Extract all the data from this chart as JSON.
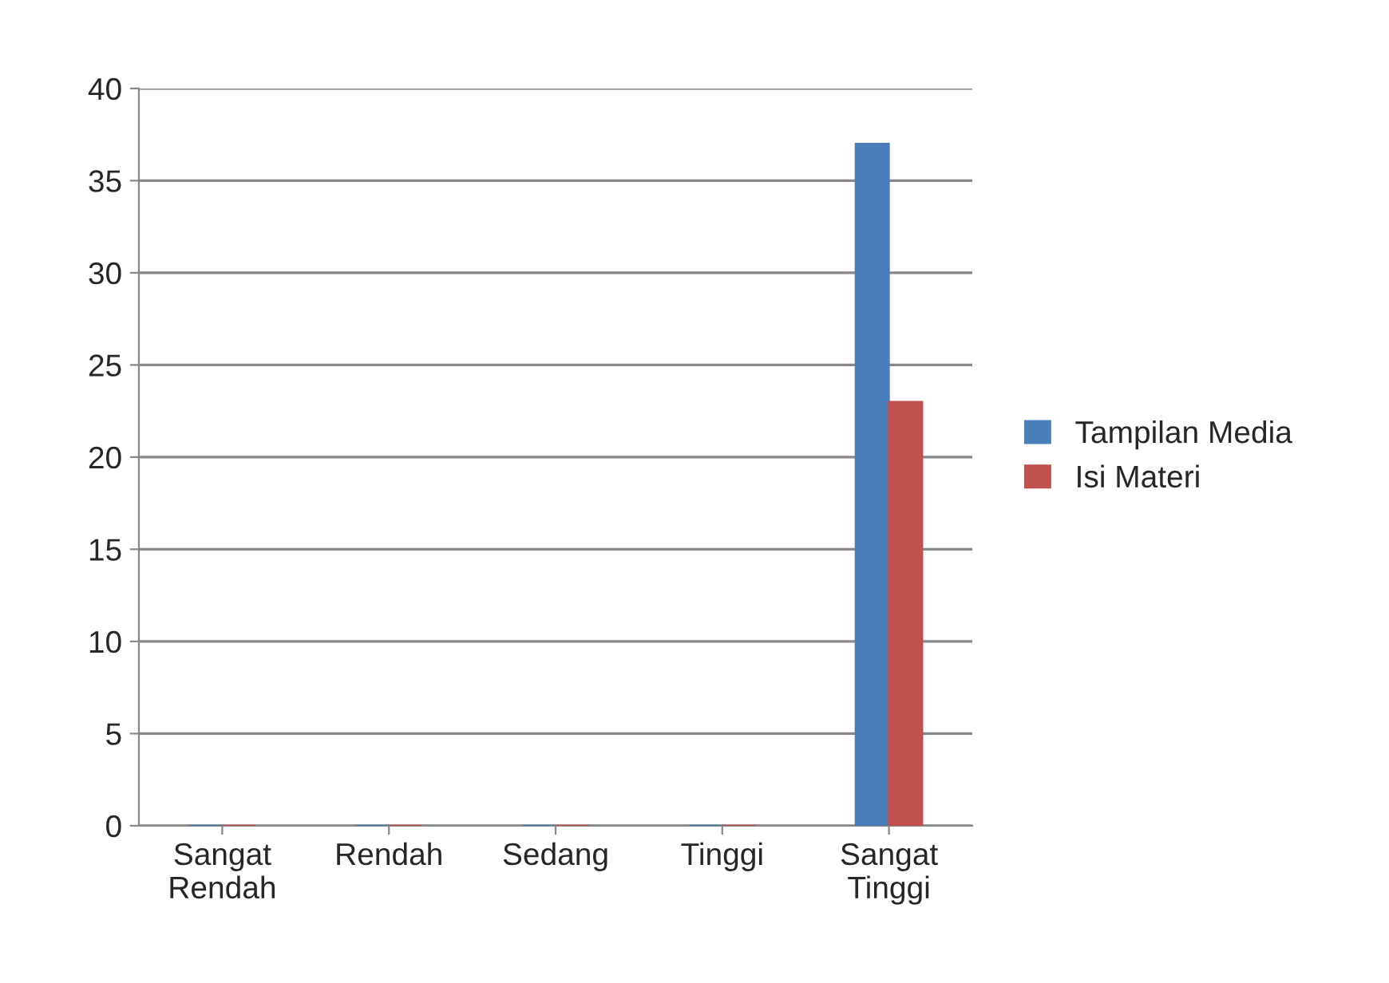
{
  "chart_data": {
    "type": "bar",
    "categories": [
      "Sangat\nRendah",
      "Rendah",
      "Sedang",
      "Tinggi",
      "Sangat\nTinggi"
    ],
    "series": [
      {
        "name": "Tampilan Media",
        "color": "#4a7ebb",
        "values": [
          0,
          0,
          0,
          0,
          37
        ]
      },
      {
        "name": "Isi Materi",
        "color": "#c0504d",
        "values": [
          0,
          0,
          0,
          0,
          23
        ]
      }
    ],
    "ylim": [
      0,
      40
    ],
    "yticks": [
      0,
      5,
      10,
      15,
      20,
      25,
      30,
      35,
      40
    ],
    "grid": "y",
    "legend": "right"
  }
}
